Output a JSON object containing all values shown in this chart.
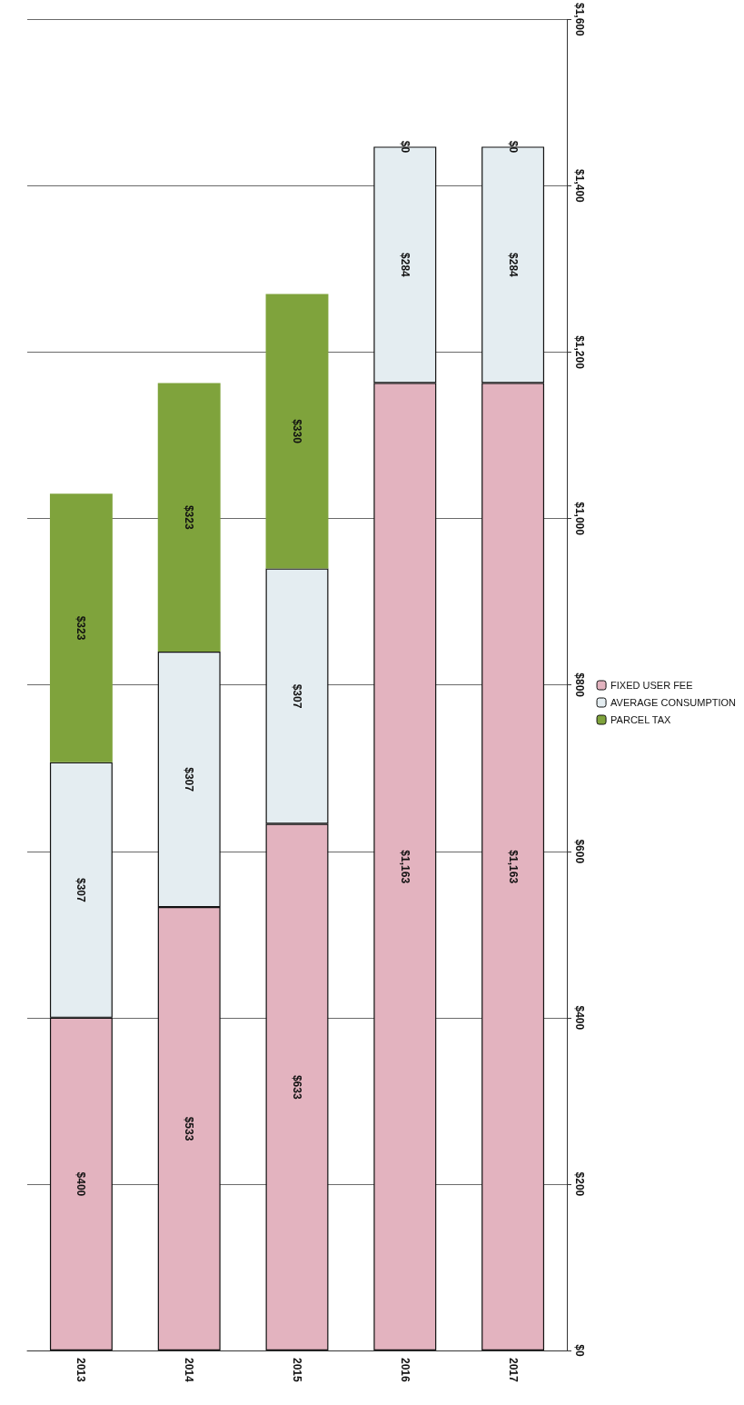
{
  "chart_data": {
    "type": "bar",
    "stacked": true,
    "categories": [
      "2013",
      "2014",
      "2015",
      "2016",
      "2017"
    ],
    "series": [
      {
        "name": "FIXED USER FEE",
        "color": "#e3b3bf",
        "values": [
          400,
          533,
          633,
          1163,
          1163
        ],
        "value_labels": [
          "$400",
          "$533",
          "$633",
          "$1,163",
          "$1,163"
        ]
      },
      {
        "name": "AVERAGE CONSUMPTION",
        "color": "#e4edf1",
        "values": [
          307,
          307,
          307,
          284,
          284
        ],
        "value_labels": [
          "$307",
          "$307",
          "$307",
          "$284",
          "$284"
        ]
      },
      {
        "name": "PARCEL TAX",
        "color": "#7fa33c",
        "values": [
          323,
          323,
          330,
          0,
          0
        ],
        "value_labels": [
          "$323",
          "$323",
          "$330",
          "$0",
          "$0"
        ]
      }
    ],
    "ylim": [
      0,
      1600
    ],
    "yticks": [
      {
        "value": 0,
        "label": "$0"
      },
      {
        "value": 200,
        "label": "$200"
      },
      {
        "value": 400,
        "label": "$400"
      },
      {
        "value": 600,
        "label": "$600"
      },
      {
        "value": 800,
        "label": "$800"
      },
      {
        "value": 1000,
        "label": "$1,000"
      },
      {
        "value": 1200,
        "label": "$1,200"
      },
      {
        "value": 1400,
        "label": "$1,400"
      },
      {
        "value": 1600,
        "label": "$1,600"
      }
    ],
    "grid": "y",
    "legend": "right"
  }
}
